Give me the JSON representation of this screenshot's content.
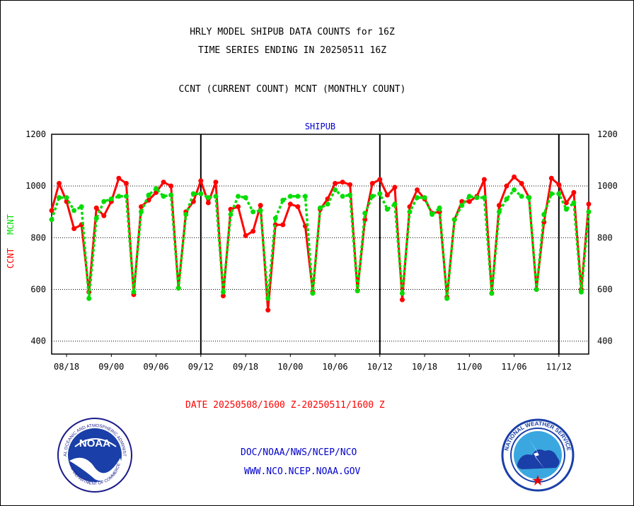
{
  "header": {
    "title_line1": "HRLY MODEL SHIPUB DATA COUNTS for 16Z",
    "title_line2": "TIME SERIES ENDING IN 20250511 16Z",
    "title_line3": "CCNT (CURRENT COUNT) MCNT (MONTHLY COUNT)"
  },
  "footer": {
    "date_range": "DATE 20250508/1600 Z-20250511/1600 Z",
    "org": "DOC/NOAA/NWS/NCEP/NCO",
    "url": "WWW.NCO.NCEP.NOAA.GOV"
  },
  "logos": {
    "noaa_text": "NOAA",
    "noaa_ring_text": "NATIONAL OCEANIC AND ATMOSPHERIC ADMINISTRATION",
    "noaa_ring_bottom": "U.S. DEPARTMENT OF COMMERCE",
    "nws_ring_text": "NATIONAL WEATHER SERVICE"
  },
  "colors": {
    "ccnt": "#ff0000",
    "mcnt": "#00dd00",
    "label_blue": "#0000cc"
  },
  "chart_data": {
    "type": "line",
    "title": "SHIPUB",
    "ylabel_ccnt": "CCNT",
    "ylabel_mcnt": "MCNT",
    "ylim": [
      350,
      1200
    ],
    "yticks": [
      400,
      600,
      800,
      1000,
      1200
    ],
    "xticks": [
      "08/18",
      "09/00",
      "09/06",
      "09/12",
      "09/18",
      "10/00",
      "10/06",
      "10/12",
      "10/18",
      "11/00",
      "11/06",
      "11/12"
    ],
    "xrange_hours": [
      0,
      72
    ],
    "day_boundaries_hours": [
      20,
      44,
      68
    ],
    "grid": "horizontal dotted",
    "series": [
      {
        "name": "CCNT",
        "x": [
          0,
          1,
          2,
          3,
          4,
          5,
          6,
          7,
          8,
          9,
          10,
          11,
          12,
          13,
          14,
          15,
          16,
          17,
          18,
          19,
          20,
          21,
          22,
          23,
          24,
          25,
          26,
          27,
          28,
          29,
          30,
          31,
          32,
          33,
          34,
          35,
          36,
          37,
          38,
          39,
          40,
          41,
          42,
          43,
          44,
          45,
          46,
          47,
          48,
          49,
          50,
          51,
          52,
          53,
          54,
          55,
          56,
          57,
          58,
          59,
          60,
          61,
          62,
          63,
          64,
          65,
          66,
          67,
          68,
          69,
          70,
          71,
          72
        ],
        "values": [
          905,
          1010,
          940,
          835,
          850,
          590,
          915,
          885,
          940,
          1030,
          1010,
          580,
          920,
          945,
          975,
          1015,
          1000,
          605,
          900,
          940,
          1020,
          935,
          1015,
          575,
          910,
          920,
          808,
          825,
          925,
          520,
          850,
          850,
          930,
          920,
          845,
          590,
          910,
          950,
          1010,
          1015,
          1005,
          595,
          870,
          1010,
          1025,
          965,
          995,
          560,
          920,
          985,
          950,
          895,
          900,
          570,
          870,
          940,
          940,
          960,
          1025,
          585,
          925,
          1000,
          1035,
          1010,
          955,
          600,
          860,
          1030,
          1005,
          935,
          975,
          600,
          930
        ]
      },
      {
        "name": "MCNT",
        "x": [
          0,
          1,
          2,
          3,
          4,
          5,
          6,
          7,
          8,
          9,
          10,
          11,
          12,
          13,
          14,
          15,
          16,
          17,
          18,
          19,
          20,
          21,
          22,
          23,
          24,
          25,
          26,
          27,
          28,
          29,
          30,
          31,
          32,
          33,
          34,
          35,
          36,
          37,
          38,
          39,
          40,
          41,
          42,
          43,
          44,
          45,
          46,
          47,
          48,
          49,
          50,
          51,
          52,
          53,
          54,
          55,
          56,
          57,
          58,
          59,
          60,
          61,
          62,
          63,
          64,
          65,
          66,
          67,
          68,
          69,
          70,
          71,
          72
        ],
        "values": [
          870,
          955,
          955,
          905,
          920,
          565,
          875,
          940,
          950,
          960,
          960,
          590,
          900,
          965,
          990,
          960,
          965,
          605,
          890,
          970,
          970,
          955,
          960,
          590,
          890,
          960,
          955,
          900,
          905,
          565,
          875,
          945,
          960,
          960,
          960,
          585,
          915,
          930,
          985,
          960,
          965,
          595,
          895,
          960,
          970,
          910,
          930,
          585,
          900,
          955,
          955,
          890,
          915,
          565,
          870,
          925,
          960,
          955,
          955,
          585,
          900,
          950,
          985,
          960,
          955,
          600,
          890,
          970,
          970,
          910,
          935,
          590,
          900
        ]
      }
    ]
  }
}
